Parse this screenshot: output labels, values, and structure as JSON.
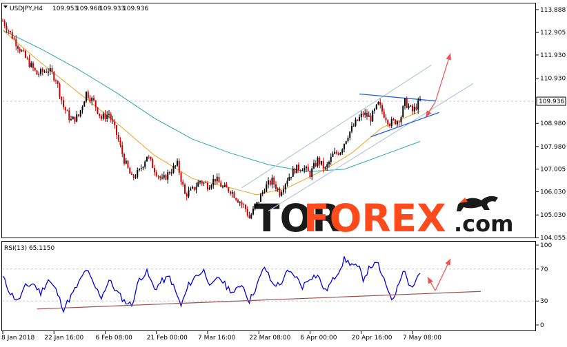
{
  "header": {
    "title": "USDJPY,H4",
    "open": "109.953",
    "high": "109.968",
    "low": "109.933",
    "close": "109.936"
  },
  "watermark": {
    "brand_part1": "TOR",
    "brand_part2": "FOREX",
    "brand_part3": ".com",
    "icon": "bull-bear-icon"
  },
  "colors": {
    "bull_candle": "#000000",
    "bear_candle": "#cc0000",
    "ma_fast": "#f0a020",
    "ma_slow": "#2aa6a6",
    "channel": "#b4c8dc",
    "trendline_blue": "#2060e0",
    "arrow": "#f05050",
    "rsi_line": "#0000dd",
    "rsi_trend": "#a05050",
    "price_tag_bg": "#ffffff",
    "brand_dark": "#1a1a1a",
    "brand_accent": "#ff4a1c"
  },
  "chart_data": [
    {
      "type": "candlestick",
      "symbol": "USDJPY",
      "timeframe": "H4",
      "current_price": "109.936",
      "ylim": [
        104.055,
        113.888
      ],
      "y_ticks": [
        "113.888",
        "112.905",
        "111.930",
        "110.930",
        "109.936",
        "108.980",
        "107.980",
        "107.005",
        "106.030",
        "105.030",
        "104.055"
      ],
      "x_ticks": [
        "8 Jan 2018",
        "22 Jan 16:00",
        "6 Feb 08:00",
        "21 Feb 00:00",
        "7 Mar 16:00",
        "22 Mar 08:00",
        "6 Apr 00:00",
        "20 Apr 16:00",
        "7 May 08:00"
      ],
      "close_path": [
        {
          "t": 0,
          "v": 113.4
        },
        {
          "t": 3,
          "v": 112.6
        },
        {
          "t": 6,
          "v": 111.8
        },
        {
          "t": 9,
          "v": 111.1
        },
        {
          "t": 12,
          "v": 111.3
        },
        {
          "t": 14,
          "v": 110.9
        },
        {
          "t": 16,
          "v": 109.7
        },
        {
          "t": 18,
          "v": 109.1
        },
        {
          "t": 20,
          "v": 109.3
        },
        {
          "t": 22,
          "v": 110.3
        },
        {
          "t": 24,
          "v": 109.9
        },
        {
          "t": 26,
          "v": 109.2
        },
        {
          "t": 28,
          "v": 109.4
        },
        {
          "t": 30,
          "v": 108.5
        },
        {
          "t": 32,
          "v": 107.4
        },
        {
          "t": 34,
          "v": 106.6
        },
        {
          "t": 36,
          "v": 106.9
        },
        {
          "t": 38,
          "v": 107.6
        },
        {
          "t": 40,
          "v": 107.0
        },
        {
          "t": 42,
          "v": 106.5
        },
        {
          "t": 44,
          "v": 106.9
        },
        {
          "t": 46,
          "v": 107.2
        },
        {
          "t": 47,
          "v": 106.6
        },
        {
          "t": 48,
          "v": 105.9
        },
        {
          "t": 50,
          "v": 106.1
        },
        {
          "t": 52,
          "v": 106.5
        },
        {
          "t": 54,
          "v": 106.3
        },
        {
          "t": 56,
          "v": 106.6
        },
        {
          "t": 58,
          "v": 106.2
        },
        {
          "t": 60,
          "v": 106.1
        },
        {
          "t": 62,
          "v": 105.7
        },
        {
          "t": 64,
          "v": 105.3
        },
        {
          "t": 65,
          "v": 104.9
        },
        {
          "t": 67,
          "v": 105.5
        },
        {
          "t": 69,
          "v": 106.2
        },
        {
          "t": 71,
          "v": 106.5
        },
        {
          "t": 73,
          "v": 106.0
        },
        {
          "t": 75,
          "v": 106.6
        },
        {
          "t": 77,
          "v": 107.0
        },
        {
          "t": 79,
          "v": 107.1
        },
        {
          "t": 81,
          "v": 106.8
        },
        {
          "t": 83,
          "v": 107.4
        },
        {
          "t": 85,
          "v": 107.0
        },
        {
          "t": 87,
          "v": 107.6
        },
        {
          "t": 89,
          "v": 107.8
        },
        {
          "t": 91,
          "v": 108.5
        },
        {
          "t": 93,
          "v": 109.0
        },
        {
          "t": 95,
          "v": 109.4
        },
        {
          "t": 97,
          "v": 109.2
        },
        {
          "t": 99,
          "v": 109.8
        },
        {
          "t": 100,
          "v": 109.5
        },
        {
          "t": 102,
          "v": 109.0
        },
        {
          "t": 104,
          "v": 109.1
        },
        {
          "t": 105,
          "v": 109.3
        },
        {
          "t": 106,
          "v": 109.9
        },
        {
          "t": 108,
          "v": 109.5
        },
        {
          "t": 110,
          "v": 109.936
        }
      ],
      "ma_fast": [
        {
          "t": 0,
          "v": 113.0
        },
        {
          "t": 10,
          "v": 111.6
        },
        {
          "t": 20,
          "v": 110.3
        },
        {
          "t": 30,
          "v": 109.0
        },
        {
          "t": 40,
          "v": 107.6
        },
        {
          "t": 50,
          "v": 106.6
        },
        {
          "t": 60,
          "v": 106.2
        },
        {
          "t": 67,
          "v": 105.9
        },
        {
          "t": 75,
          "v": 106.2
        },
        {
          "t": 85,
          "v": 107.0
        },
        {
          "t": 92,
          "v": 107.7
        },
        {
          "t": 100,
          "v": 108.8
        },
        {
          "t": 110,
          "v": 109.5
        }
      ],
      "ma_slow": [
        {
          "t": 0,
          "v": 113.0
        },
        {
          "t": 10,
          "v": 112.2
        },
        {
          "t": 20,
          "v": 111.3
        },
        {
          "t": 30,
          "v": 110.3
        },
        {
          "t": 40,
          "v": 109.2
        },
        {
          "t": 50,
          "v": 108.3
        },
        {
          "t": 60,
          "v": 107.7
        },
        {
          "t": 70,
          "v": 107.2
        },
        {
          "t": 80,
          "v": 106.9
        },
        {
          "t": 90,
          "v": 107.0
        },
        {
          "t": 100,
          "v": 107.6
        },
        {
          "t": 110,
          "v": 108.2
        }
      ],
      "channel_lines": [
        {
          "t1": 63,
          "v1": 106.2,
          "t2": 113,
          "v2": 111.5
        },
        {
          "t1": 70,
          "v1": 105.2,
          "t2": 124,
          "v2": 110.7
        }
      ],
      "trend_lines": [
        {
          "t1": 94,
          "v1": 110.25,
          "t2": 114,
          "v2": 109.95
        },
        {
          "t1": 97,
          "v1": 108.4,
          "t2": 115,
          "v2": 109.45
        }
      ],
      "arrows": [
        {
          "t1": 114,
          "v1": 109.9,
          "t2": 118,
          "v2": 112.0
        },
        {
          "t1": 114,
          "v1": 109.9,
          "t2": 111.5,
          "v2": 109.25
        }
      ]
    },
    {
      "type": "line",
      "title": "RSI(13) 65.1150",
      "ylim": [
        0,
        100
      ],
      "y_ticks": [
        "100",
        "70",
        "30",
        "0"
      ],
      "levels": [
        70,
        30
      ],
      "rsi_path": [
        {
          "t": 0,
          "v": 60
        },
        {
          "t": 2,
          "v": 40
        },
        {
          "t": 4,
          "v": 30
        },
        {
          "t": 6,
          "v": 48
        },
        {
          "t": 8,
          "v": 52
        },
        {
          "t": 10,
          "v": 40
        },
        {
          "t": 12,
          "v": 57
        },
        {
          "t": 14,
          "v": 44
        },
        {
          "t": 16,
          "v": 20
        },
        {
          "t": 18,
          "v": 36
        },
        {
          "t": 20,
          "v": 52
        },
        {
          "t": 22,
          "v": 70
        },
        {
          "t": 24,
          "v": 50
        },
        {
          "t": 26,
          "v": 35
        },
        {
          "t": 28,
          "v": 56
        },
        {
          "t": 30,
          "v": 42
        },
        {
          "t": 32,
          "v": 30
        },
        {
          "t": 34,
          "v": 25
        },
        {
          "t": 36,
          "v": 58
        },
        {
          "t": 38,
          "v": 66
        },
        {
          "t": 40,
          "v": 45
        },
        {
          "t": 42,
          "v": 55
        },
        {
          "t": 44,
          "v": 60
        },
        {
          "t": 46,
          "v": 36
        },
        {
          "t": 47,
          "v": 24
        },
        {
          "t": 49,
          "v": 50
        },
        {
          "t": 51,
          "v": 62
        },
        {
          "t": 53,
          "v": 68
        },
        {
          "t": 55,
          "v": 48
        },
        {
          "t": 57,
          "v": 60
        },
        {
          "t": 59,
          "v": 48
        },
        {
          "t": 61,
          "v": 40
        },
        {
          "t": 63,
          "v": 52
        },
        {
          "t": 65,
          "v": 30
        },
        {
          "t": 67,
          "v": 50
        },
        {
          "t": 69,
          "v": 73
        },
        {
          "t": 71,
          "v": 52
        },
        {
          "t": 73,
          "v": 50
        },
        {
          "t": 75,
          "v": 66
        },
        {
          "t": 77,
          "v": 62
        },
        {
          "t": 79,
          "v": 48
        },
        {
          "t": 81,
          "v": 60
        },
        {
          "t": 83,
          "v": 62
        },
        {
          "t": 85,
          "v": 42
        },
        {
          "t": 87,
          "v": 56
        },
        {
          "t": 89,
          "v": 72
        },
        {
          "t": 90,
          "v": 82
        },
        {
          "t": 92,
          "v": 76
        },
        {
          "t": 94,
          "v": 70
        },
        {
          "t": 95,
          "v": 58
        },
        {
          "t": 97,
          "v": 74
        },
        {
          "t": 99,
          "v": 76
        },
        {
          "t": 100,
          "v": 60
        },
        {
          "t": 102,
          "v": 40
        },
        {
          "t": 103,
          "v": 30
        },
        {
          "t": 104,
          "v": 50
        },
        {
          "t": 105,
          "v": 62
        },
        {
          "t": 106,
          "v": 70
        },
        {
          "t": 107,
          "v": 50
        },
        {
          "t": 108,
          "v": 48
        },
        {
          "t": 110,
          "v": 65
        }
      ],
      "trend_line": {
        "t1": 9,
        "v1": 20,
        "t2": 126,
        "v2": 42
      },
      "arrows": [
        {
          "t1": 114,
          "v1": 43,
          "t2": 118,
          "v2": 83
        },
        {
          "t1": 114,
          "v1": 43,
          "t2": 112,
          "v2": 60
        }
      ]
    }
  ]
}
